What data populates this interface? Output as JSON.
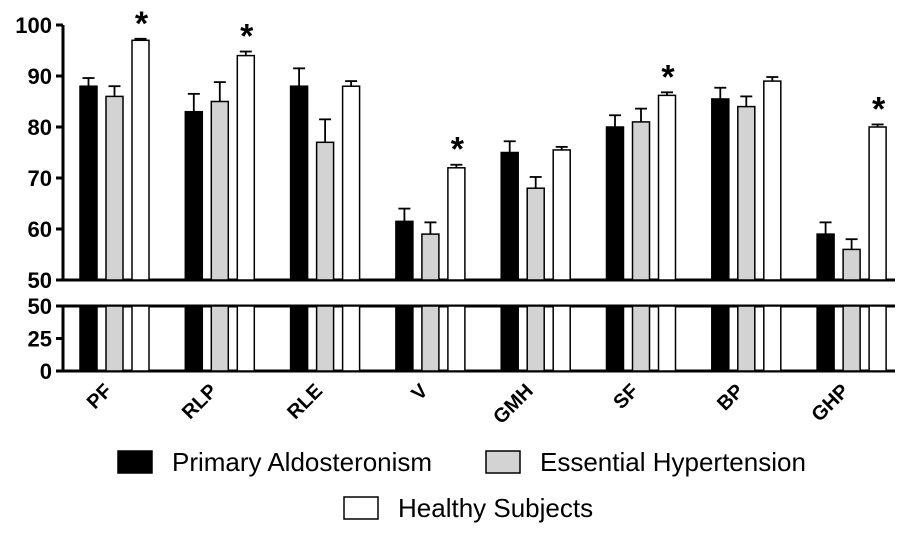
{
  "chart_data": {
    "type": "bar",
    "categories": [
      "PF",
      "RLP",
      "RLE",
      "V",
      "GMH",
      "SF",
      "BP",
      "GHP"
    ],
    "series": [
      {
        "name": "Primary Aldosteronism",
        "color": "#000000",
        "values": [
          88,
          83,
          88,
          61.5,
          75,
          80,
          85.5,
          59
        ],
        "errors": [
          1.6,
          3.5,
          3.5,
          2.5,
          2.2,
          2.3,
          2.2,
          2.3
        ]
      },
      {
        "name": "Essential Hypertension",
        "color": "#d3d3d3",
        "values": [
          86,
          85,
          77,
          59,
          68,
          81,
          84,
          56
        ],
        "errors": [
          2.0,
          3.8,
          4.5,
          2.3,
          2.2,
          2.6,
          2.0,
          2.0
        ]
      },
      {
        "name": "Healthy Subjects",
        "color": "#ffffff",
        "values": [
          97,
          94,
          88,
          72,
          75.5,
          86.2,
          89,
          80
        ],
        "errors": [
          0.3,
          0.8,
          1.0,
          0.6,
          0.6,
          0.6,
          0.8,
          0.5
        ]
      }
    ],
    "significance": [
      "*",
      "*",
      "",
      "*",
      "",
      "*",
      "",
      "*"
    ],
    "y_axis": {
      "broken": true,
      "upper_range": [
        50,
        100
      ],
      "upper_ticks": [
        "50",
        "60",
        "70",
        "80",
        "90",
        "100"
      ],
      "lower_range": [
        0,
        50
      ],
      "lower_ticks": [
        "0",
        "25",
        "50"
      ]
    },
    "legend_position": "bottom",
    "grid": false
  }
}
